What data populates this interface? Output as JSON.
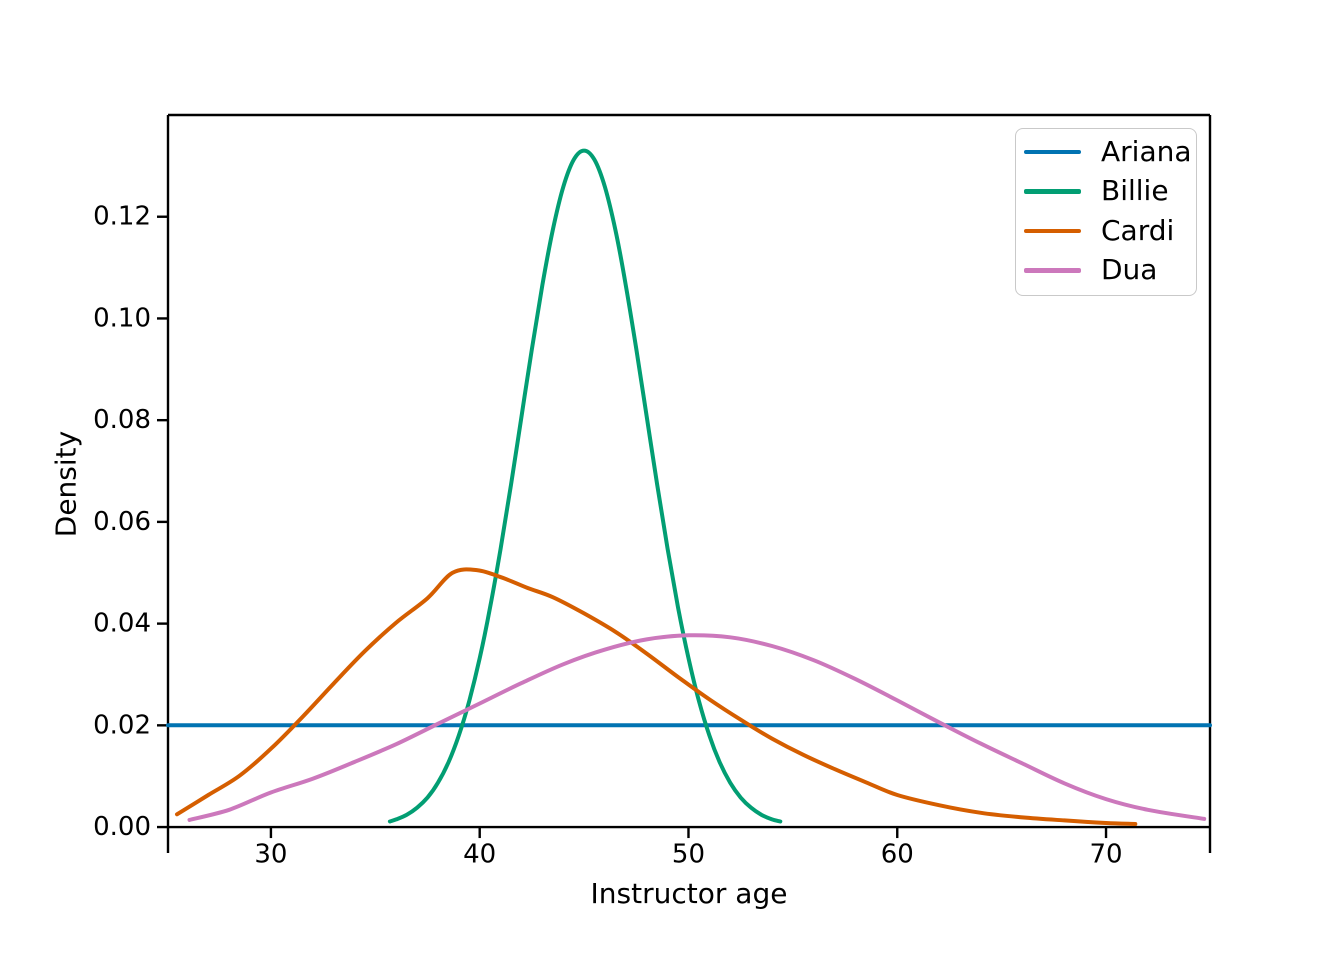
{
  "figure": {
    "background": "#ffffff"
  },
  "chart_data": {
    "type": "line",
    "title": "",
    "xlabel": "Instructor age",
    "ylabel": "Density",
    "xlim": [
      25.07,
      74.98
    ],
    "ylim": [
      -0.0051,
      0.14
    ],
    "xticks": [
      30,
      40,
      50,
      60,
      70
    ],
    "xtick_labels": [
      "30",
      "40",
      "50",
      "60",
      "70"
    ],
    "ytick_values": [
      0.0,
      0.02,
      0.04,
      0.06,
      0.08,
      0.1,
      0.12
    ],
    "ytick_labels": [
      "0.00",
      "0.02",
      "0.04",
      "0.06",
      "0.08",
      "0.10",
      "0.12"
    ],
    "grid": false,
    "legend": {
      "position": "upper right",
      "entries": [
        "Ariana",
        "Billie",
        "Cardi",
        "Dua"
      ]
    },
    "series": [
      {
        "name": "Ariana",
        "color": "#0173b2",
        "shape": "uniform density 0.02 across full age range",
        "points": [
          [
            25.07,
            0.02
          ],
          [
            74.98,
            0.02
          ]
        ]
      },
      {
        "name": "Billie",
        "color": "#029e73",
        "shape": "narrow bell curve, peak 0.133 at age 45",
        "points": [
          [
            35.7,
            0.0011
          ],
          [
            36,
            0.0015
          ],
          [
            36.5,
            0.0024
          ],
          [
            37,
            0.0038
          ],
          [
            37.5,
            0.0058
          ],
          [
            38,
            0.0087
          ],
          [
            38.5,
            0.0127
          ],
          [
            39,
            0.018
          ],
          [
            39.5,
            0.0248
          ],
          [
            40,
            0.0332
          ],
          [
            40.5,
            0.0432
          ],
          [
            41,
            0.0547
          ],
          [
            41.5,
            0.0673
          ],
          [
            42,
            0.0807
          ],
          [
            42.5,
            0.094
          ],
          [
            43,
            0.1065
          ],
          [
            43.5,
            0.1174
          ],
          [
            44,
            0.1258
          ],
          [
            44.5,
            0.1312
          ],
          [
            45,
            0.133
          ],
          [
            45.5,
            0.1312
          ],
          [
            46,
            0.1258
          ],
          [
            46.5,
            0.1174
          ],
          [
            47,
            0.1065
          ],
          [
            47.5,
            0.094
          ],
          [
            48,
            0.0807
          ],
          [
            48.5,
            0.0673
          ],
          [
            49,
            0.0547
          ],
          [
            49.5,
            0.0432
          ],
          [
            50,
            0.0332
          ],
          [
            50.5,
            0.0248
          ],
          [
            51,
            0.018
          ],
          [
            51.5,
            0.0127
          ],
          [
            52,
            0.0087
          ],
          [
            52.5,
            0.0058
          ],
          [
            53,
            0.0038
          ],
          [
            53.5,
            0.0024
          ],
          [
            54,
            0.0015
          ],
          [
            54.4,
            0.0011
          ]
        ]
      },
      {
        "name": "Cardi",
        "color": "#d55e00",
        "shape": "right-skewed curve, peak 0.0505 near age 39, long right tail to ~71",
        "points": [
          [
            25.5,
            0.0025
          ],
          [
            27,
            0.0063
          ],
          [
            28.5,
            0.0101
          ],
          [
            30,
            0.0154
          ],
          [
            31.5,
            0.0216
          ],
          [
            33,
            0.0282
          ],
          [
            34.5,
            0.0346
          ],
          [
            36,
            0.0402
          ],
          [
            37.5,
            0.045
          ],
          [
            38.7,
            0.05
          ],
          [
            39.9,
            0.0505
          ],
          [
            41.1,
            0.049
          ],
          [
            42.3,
            0.047
          ],
          [
            43.5,
            0.0452
          ],
          [
            45,
            0.042
          ],
          [
            46.5,
            0.0384
          ],
          [
            48,
            0.0341
          ],
          [
            49.5,
            0.0295
          ],
          [
            51,
            0.0251
          ],
          [
            52.5,
            0.0211
          ],
          [
            54,
            0.0174
          ],
          [
            55.5,
            0.0142
          ],
          [
            57,
            0.0114
          ],
          [
            58.5,
            0.0088
          ],
          [
            60,
            0.0063
          ],
          [
            62,
            0.0043
          ],
          [
            64,
            0.0028
          ],
          [
            66,
            0.0019
          ],
          [
            68,
            0.0013
          ],
          [
            70,
            0.0008
          ],
          [
            71.4,
            0.0006
          ]
        ]
      },
      {
        "name": "Dua",
        "color": "#cc78bc",
        "shape": "broad bell curve, peak 0.0377 near age 50, spans ~26 to ~75",
        "points": [
          [
            26.1,
            0.0014
          ],
          [
            28,
            0.0034
          ],
          [
            30,
            0.0068
          ],
          [
            32,
            0.0095
          ],
          [
            34,
            0.0128
          ],
          [
            36,
            0.0163
          ],
          [
            38,
            0.0203
          ],
          [
            40,
            0.0243
          ],
          [
            42,
            0.0283
          ],
          [
            44,
            0.032
          ],
          [
            46,
            0.0349
          ],
          [
            48,
            0.0369
          ],
          [
            50,
            0.0377
          ],
          [
            52,
            0.0373
          ],
          [
            54,
            0.0356
          ],
          [
            56,
            0.0328
          ],
          [
            58,
            0.0291
          ],
          [
            60,
            0.0249
          ],
          [
            62,
            0.0206
          ],
          [
            64,
            0.0164
          ],
          [
            66,
            0.0125
          ],
          [
            68,
            0.0086
          ],
          [
            70,
            0.0055
          ],
          [
            72,
            0.0034
          ],
          [
            74.7,
            0.0016
          ]
        ]
      }
    ]
  }
}
